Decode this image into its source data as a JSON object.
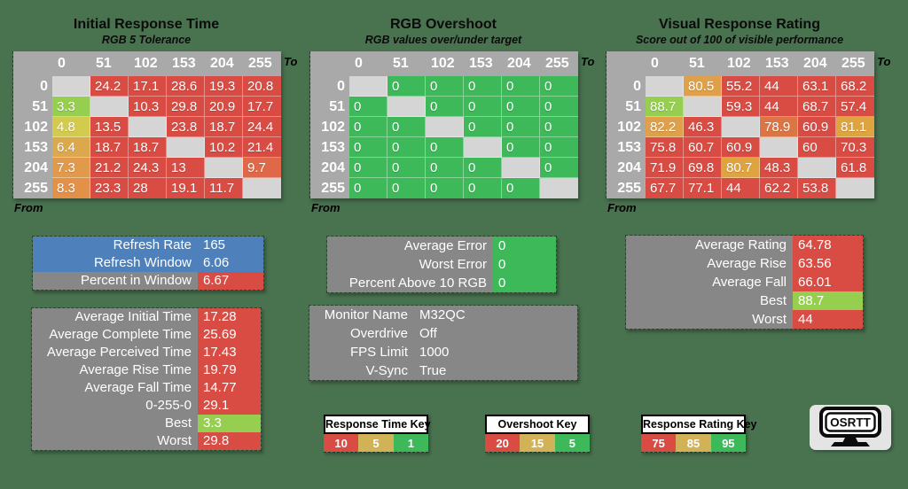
{
  "palette": {
    "background": "#49724F",
    "header_gray": "#A9A9A9",
    "diag": "#D5D5D5",
    "gray": "#878787",
    "red": "#D84C44",
    "green": "#3EB95A",
    "lgreen": "#96CE50",
    "ygreen": "#D2CB4E",
    "o1": "#DBA84E",
    "o2": "#E19A4B",
    "o3": "#E39149",
    "ro": "#DE6847",
    "or": "#E0A04A",
    "or2": "#DFA440",
    "ro2": "#DB7544",
    "blue": "#4E80BC",
    "tan": "#D2B257",
    "white": "#FFFFFF",
    "black": "#111111"
  },
  "tables": [
    {
      "title": "Initial Response Time",
      "subtitle": "RGB 5 Tolerance",
      "axis_to": "To",
      "axis_from": "From",
      "columns": [
        "0",
        "51",
        "102",
        "153",
        "204",
        "255"
      ],
      "rows": [
        {
          "label": "0",
          "cells": [
            {
              "v": "",
              "c": "diag"
            },
            {
              "v": "24.2",
              "c": "red"
            },
            {
              "v": "17.1",
              "c": "red"
            },
            {
              "v": "28.6",
              "c": "red"
            },
            {
              "v": "19.3",
              "c": "red"
            },
            {
              "v": "20.8",
              "c": "red"
            }
          ]
        },
        {
          "label": "51",
          "cells": [
            {
              "v": "3.3",
              "c": "lgreen"
            },
            {
              "v": "",
              "c": "diag"
            },
            {
              "v": "10.3",
              "c": "red"
            },
            {
              "v": "29.8",
              "c": "red"
            },
            {
              "v": "20.9",
              "c": "red"
            },
            {
              "v": "17.7",
              "c": "red"
            }
          ]
        },
        {
          "label": "102",
          "cells": [
            {
              "v": "4.8",
              "c": "ygreen"
            },
            {
              "v": "13.5",
              "c": "red"
            },
            {
              "v": "",
              "c": "diag"
            },
            {
              "v": "23.8",
              "c": "red"
            },
            {
              "v": "18.7",
              "c": "red"
            },
            {
              "v": "24.4",
              "c": "red"
            }
          ]
        },
        {
          "label": "153",
          "cells": [
            {
              "v": "6.4",
              "c": "o1"
            },
            {
              "v": "18.7",
              "c": "red"
            },
            {
              "v": "18.7",
              "c": "red"
            },
            {
              "v": "",
              "c": "diag"
            },
            {
              "v": "10.2",
              "c": "red"
            },
            {
              "v": "21.4",
              "c": "red"
            }
          ]
        },
        {
          "label": "204",
          "cells": [
            {
              "v": "7.3",
              "c": "o2"
            },
            {
              "v": "21.2",
              "c": "red"
            },
            {
              "v": "24.3",
              "c": "red"
            },
            {
              "v": "13",
              "c": "red"
            },
            {
              "v": "",
              "c": "diag"
            },
            {
              "v": "9.7",
              "c": "ro"
            }
          ]
        },
        {
          "label": "255",
          "cells": [
            {
              "v": "8.3",
              "c": "o3"
            },
            {
              "v": "23.3",
              "c": "red"
            },
            {
              "v": "28",
              "c": "red"
            },
            {
              "v": "19.1",
              "c": "red"
            },
            {
              "v": "11.7",
              "c": "red"
            },
            {
              "v": "",
              "c": "diag"
            }
          ]
        }
      ]
    },
    {
      "title": "RGB Overshoot",
      "subtitle": "RGB values over/under target",
      "axis_to": "To",
      "axis_from": "From",
      "columns": [
        "0",
        "51",
        "102",
        "153",
        "204",
        "255"
      ],
      "rows": [
        {
          "label": "0",
          "cells": [
            {
              "v": "",
              "c": "diag"
            },
            {
              "v": "0",
              "c": "green"
            },
            {
              "v": "0",
              "c": "green"
            },
            {
              "v": "0",
              "c": "green"
            },
            {
              "v": "0",
              "c": "green"
            },
            {
              "v": "0",
              "c": "green"
            }
          ]
        },
        {
          "label": "51",
          "cells": [
            {
              "v": "0",
              "c": "green"
            },
            {
              "v": "",
              "c": "diag"
            },
            {
              "v": "0",
              "c": "green"
            },
            {
              "v": "0",
              "c": "green"
            },
            {
              "v": "0",
              "c": "green"
            },
            {
              "v": "0",
              "c": "green"
            }
          ]
        },
        {
          "label": "102",
          "cells": [
            {
              "v": "0",
              "c": "green"
            },
            {
              "v": "0",
              "c": "green"
            },
            {
              "v": "",
              "c": "diag"
            },
            {
              "v": "0",
              "c": "green"
            },
            {
              "v": "0",
              "c": "green"
            },
            {
              "v": "0",
              "c": "green"
            }
          ]
        },
        {
          "label": "153",
          "cells": [
            {
              "v": "0",
              "c": "green"
            },
            {
              "v": "0",
              "c": "green"
            },
            {
              "v": "0",
              "c": "green"
            },
            {
              "v": "",
              "c": "diag"
            },
            {
              "v": "0",
              "c": "green"
            },
            {
              "v": "0",
              "c": "green"
            }
          ]
        },
        {
          "label": "204",
          "cells": [
            {
              "v": "0",
              "c": "green"
            },
            {
              "v": "0",
              "c": "green"
            },
            {
              "v": "0",
              "c": "green"
            },
            {
              "v": "0",
              "c": "green"
            },
            {
              "v": "",
              "c": "diag"
            },
            {
              "v": "0",
              "c": "green"
            }
          ]
        },
        {
          "label": "255",
          "cells": [
            {
              "v": "0",
              "c": "green"
            },
            {
              "v": "0",
              "c": "green"
            },
            {
              "v": "0",
              "c": "green"
            },
            {
              "v": "0",
              "c": "green"
            },
            {
              "v": "0",
              "c": "green"
            },
            {
              "v": "",
              "c": "diag"
            }
          ]
        }
      ]
    },
    {
      "title": "Visual Response Rating",
      "subtitle": "Score out of 100 of visible performance",
      "axis_to": "To",
      "axis_from": "From",
      "columns": [
        "0",
        "51",
        "102",
        "153",
        "204",
        "255"
      ],
      "rows": [
        {
          "label": "0",
          "cells": [
            {
              "v": "",
              "c": "diag"
            },
            {
              "v": "80.5",
              "c": "or"
            },
            {
              "v": "55.2",
              "c": "red"
            },
            {
              "v": "44",
              "c": "red"
            },
            {
              "v": "63.1",
              "c": "red"
            },
            {
              "v": "68.2",
              "c": "red"
            }
          ]
        },
        {
          "label": "51",
          "cells": [
            {
              "v": "88.7",
              "c": "lgreen"
            },
            {
              "v": "",
              "c": "diag"
            },
            {
              "v": "59.3",
              "c": "red"
            },
            {
              "v": "44",
              "c": "red"
            },
            {
              "v": "68.7",
              "c": "red"
            },
            {
              "v": "57.4",
              "c": "red"
            }
          ]
        },
        {
          "label": "102",
          "cells": [
            {
              "v": "82.2",
              "c": "or"
            },
            {
              "v": "46.3",
              "c": "red"
            },
            {
              "v": "",
              "c": "diag"
            },
            {
              "v": "78.9",
              "c": "ro2"
            },
            {
              "v": "60.9",
              "c": "red"
            },
            {
              "v": "81.1",
              "c": "or2"
            }
          ]
        },
        {
          "label": "153",
          "cells": [
            {
              "v": "75.8",
              "c": "red"
            },
            {
              "v": "60.7",
              "c": "red"
            },
            {
              "v": "60.9",
              "c": "red"
            },
            {
              "v": "",
              "c": "diag"
            },
            {
              "v": "60",
              "c": "red"
            },
            {
              "v": "70.3",
              "c": "red"
            }
          ]
        },
        {
          "label": "204",
          "cells": [
            {
              "v": "71.9",
              "c": "red"
            },
            {
              "v": "69.8",
              "c": "red"
            },
            {
              "v": "80.7",
              "c": "or2"
            },
            {
              "v": "48.3",
              "c": "red"
            },
            {
              "v": "",
              "c": "diag"
            },
            {
              "v": "61.8",
              "c": "red"
            }
          ]
        },
        {
          "label": "255",
          "cells": [
            {
              "v": "67.7",
              "c": "red"
            },
            {
              "v": "77.1",
              "c": "red"
            },
            {
              "v": "44",
              "c": "red"
            },
            {
              "v": "62.2",
              "c": "red"
            },
            {
              "v": "53.8",
              "c": "red"
            },
            {
              "v": "",
              "c": "diag"
            }
          ]
        }
      ]
    }
  ],
  "blocks": {
    "refresh": {
      "rows": [
        {
          "label": "Refresh Rate",
          "value": "165",
          "lb": "blue",
          "vb": "blue"
        },
        {
          "label": "Refresh Window",
          "value": "6.06",
          "lb": "blue",
          "vb": "blue"
        },
        {
          "label": "Percent in Window",
          "value": "6.67",
          "lb": "gray",
          "vb": "red"
        }
      ]
    },
    "times": {
      "rows": [
        {
          "label": "Average Initial Time",
          "value": "17.28",
          "lb": "gray",
          "vb": "red"
        },
        {
          "label": "Average Complete Time",
          "value": "25.69",
          "lb": "gray",
          "vb": "red"
        },
        {
          "label": "Average Perceived Time",
          "value": "17.43",
          "lb": "gray",
          "vb": "red"
        },
        {
          "label": "Average Rise Time",
          "value": "19.79",
          "lb": "gray",
          "vb": "red"
        },
        {
          "label": "Average Fall Time",
          "value": "14.77",
          "lb": "gray",
          "vb": "red"
        },
        {
          "label": "0-255-0",
          "value": "29.1",
          "lb": "gray",
          "vb": "red"
        },
        {
          "label": "Best",
          "value": "3.3",
          "lb": "gray",
          "vb": "lgreen"
        },
        {
          "label": "Worst",
          "value": "29.8",
          "lb": "gray",
          "vb": "red"
        }
      ]
    },
    "error": {
      "rows": [
        {
          "label": "Average Error",
          "value": "0",
          "lb": "gray",
          "vb": "green"
        },
        {
          "label": "Worst Error",
          "value": "0",
          "lb": "gray",
          "vb": "green"
        },
        {
          "label": "Percent Above 10 RGB",
          "value": "0",
          "lb": "gray",
          "vb": "green"
        }
      ]
    },
    "monitor": {
      "rows": [
        {
          "label": "Monitor Name",
          "value": "M32QC",
          "lb": "gray",
          "vb": "gray"
        },
        {
          "label": "Overdrive",
          "value": "Off",
          "lb": "gray",
          "vb": "gray"
        },
        {
          "label": "FPS Limit",
          "value": "1000",
          "lb": "gray",
          "vb": "gray"
        },
        {
          "label": "V-Sync",
          "value": "True",
          "lb": "gray",
          "vb": "gray"
        }
      ]
    },
    "rating": {
      "rows": [
        {
          "label": "Average Rating",
          "value": "64.78",
          "lb": "gray",
          "vb": "red"
        },
        {
          "label": "Average Rise",
          "value": "63.56",
          "lb": "gray",
          "vb": "red"
        },
        {
          "label": "Average Fall",
          "value": "66.01",
          "lb": "gray",
          "vb": "red"
        },
        {
          "label": "Best",
          "value": "88.7",
          "lb": "gray",
          "vb": "lgreen"
        },
        {
          "label": "Worst",
          "value": "44",
          "lb": "gray",
          "vb": "red"
        }
      ]
    }
  },
  "keys": [
    {
      "title": "Response Time Key",
      "cells": [
        {
          "v": "10",
          "c": "red"
        },
        {
          "v": "5",
          "c": "tan"
        },
        {
          "v": "1",
          "c": "green"
        }
      ]
    },
    {
      "title": "Overshoot Key",
      "cells": [
        {
          "v": "20",
          "c": "red"
        },
        {
          "v": "15",
          "c": "tan"
        },
        {
          "v": "5",
          "c": "green"
        }
      ]
    },
    {
      "title": "Response Rating Key",
      "cells": [
        {
          "v": "75",
          "c": "red"
        },
        {
          "v": "85",
          "c": "tan"
        },
        {
          "v": "95",
          "c": "green"
        }
      ]
    }
  ],
  "logo": {
    "text": "OSRTT"
  }
}
